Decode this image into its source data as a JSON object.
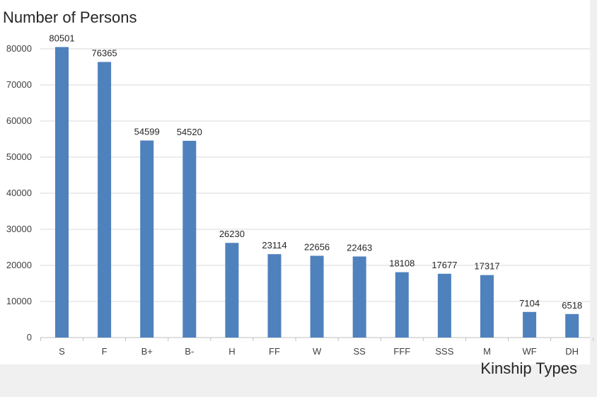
{
  "chart_data": {
    "type": "bar",
    "title": "Number of Persons",
    "xlabel": "Kinship Types",
    "ylabel": "",
    "categories": [
      "S",
      "F",
      "B+",
      "B-",
      "H",
      "FF",
      "W",
      "SS",
      "FFF",
      "SSS",
      "M",
      "WF",
      "DH"
    ],
    "values": [
      80501,
      76365,
      54599,
      54520,
      26230,
      23114,
      22656,
      22463,
      18108,
      17677,
      17317,
      7104,
      6518
    ],
    "data_labels": [
      "80501",
      "76365",
      "54599",
      "54520",
      "26230",
      "23114",
      "22656",
      "22463",
      "18108",
      "17677",
      "17317",
      "7104",
      "6518"
    ],
    "ylim": [
      0,
      80000
    ],
    "yticks": [
      "0",
      "10000",
      "20000",
      "30000",
      "40000",
      "50000",
      "60000",
      "70000",
      "80000"
    ],
    "grid": true,
    "bar_color": "#4f81bd"
  }
}
